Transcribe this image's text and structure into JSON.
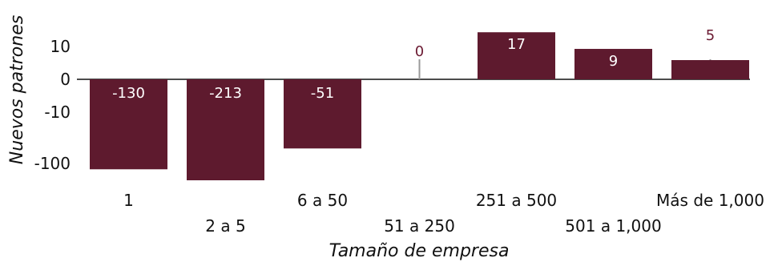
{
  "chart_data": {
    "type": "bar",
    "xlabel": "Tamaño de empresa",
    "ylabel": "Nuevos patrones",
    "y_scale": "symlog",
    "categories": [
      "1",
      "2 a 5",
      "6 a 50",
      "51 a 250",
      "251 a 500",
      "501 a 1,000",
      "Más de 1,000"
    ],
    "values": [
      -130,
      -213,
      -51,
      0,
      17,
      9,
      5
    ],
    "value_labels": [
      "-130",
      "-213",
      "-51",
      "0",
      "17",
      "9",
      "5"
    ],
    "yticks": [
      "10",
      "0",
      "-10",
      "-100"
    ],
    "ytick_values": [
      10,
      0,
      -10,
      -100
    ],
    "grid": false,
    "legend": "none",
    "bar_color": "#5e1a2e",
    "label_color": "#6b1a32",
    "stem_color": "#9a9a9a"
  }
}
